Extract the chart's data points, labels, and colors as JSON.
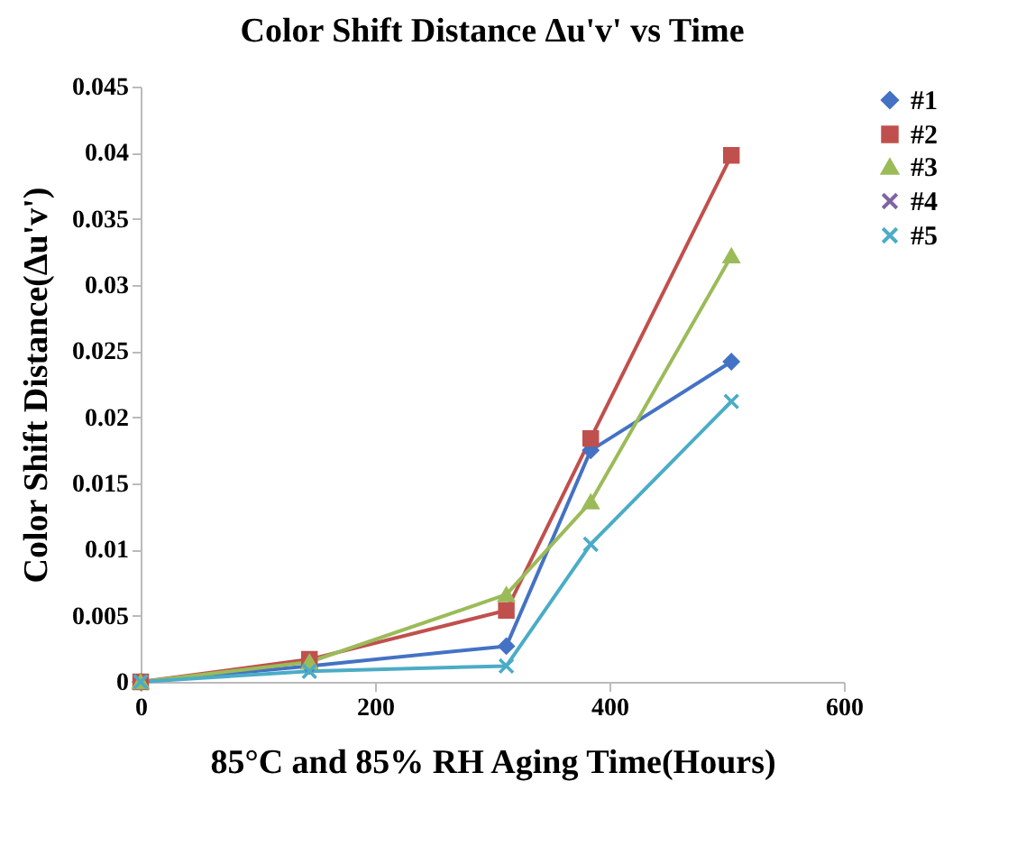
{
  "chart_data": {
    "type": "line",
    "title": "Color Shift Distance Δu'v' vs Time",
    "xlabel": "85°C and 85% RH Aging Time(Hours)",
    "ylabel": "Color Shift Distance(Δu'v')",
    "x": [
      0,
      144,
      312,
      384,
      504
    ],
    "series": [
      {
        "name": "#1",
        "color": "#4472c4",
        "marker": "diamond",
        "values": [
          0,
          0.0012,
          0.0027,
          0.0175,
          0.0242
        ]
      },
      {
        "name": "#2",
        "color": "#c0504d",
        "marker": "square",
        "values": [
          0,
          0.0017,
          0.0054,
          0.0184,
          0.0398
        ]
      },
      {
        "name": "#3",
        "color": "#9bbb59",
        "marker": "triangle",
        "values": [
          0,
          0.0015,
          0.0066,
          0.0136,
          0.0322
        ]
      },
      {
        "name": "#4",
        "color": "#8064a2",
        "marker": "cross",
        "values": [
          null,
          null,
          null,
          null,
          null
        ]
      },
      {
        "name": "#5",
        "color": "#4bacc6",
        "marker": "cross",
        "values": [
          0,
          0.0008,
          0.0012,
          0.0104,
          0.0212
        ]
      }
    ],
    "xlim": [
      0,
      600
    ],
    "xticks": [
      0,
      200,
      400,
      600
    ],
    "ylim": [
      0,
      0.045
    ],
    "yticks": [
      0,
      0.005,
      0.01,
      0.015,
      0.02,
      0.025,
      0.03,
      0.035,
      0.04,
      0.045
    ],
    "grid": false,
    "legend": "right"
  }
}
